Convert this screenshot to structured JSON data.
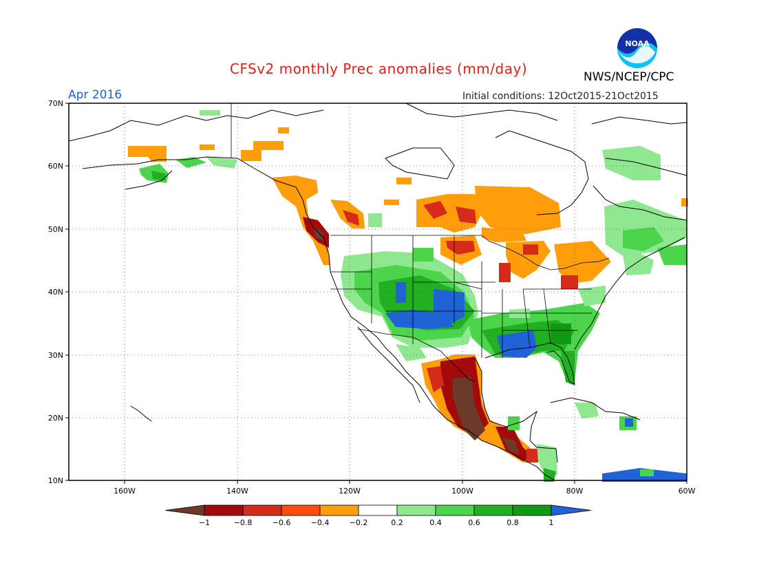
{
  "title": "CFSv2 monthly Prec anomalies (mm/day)",
  "agency": "NWS/NCEP/CPC",
  "month": "Apr 2016",
  "initial_conditions": "Initial conditions: 12Oct2015-21Oct2015",
  "logo_text": "NOAA",
  "lat_labels": [
    "70N",
    "60N",
    "50N",
    "40N",
    "30N",
    "20N",
    "10N"
  ],
  "lon_labels": [
    "160W",
    "140W",
    "120W",
    "100W",
    "80W",
    "60W"
  ],
  "colorbar": {
    "labels": [
      "−1",
      "−0.8",
      "−0.6",
      "−0.4",
      "−0.2",
      "0.2",
      "0.4",
      "0.6",
      "0.8",
      "1"
    ],
    "colors": [
      "#6b3a2a",
      "#a50a0a",
      "#d62a1a",
      "#ff4a10",
      "#ff9e0a",
      "#ffffff",
      "#8fe88f",
      "#4cd44c",
      "#22b022",
      "#129912",
      "#1f63d6"
    ]
  }
}
